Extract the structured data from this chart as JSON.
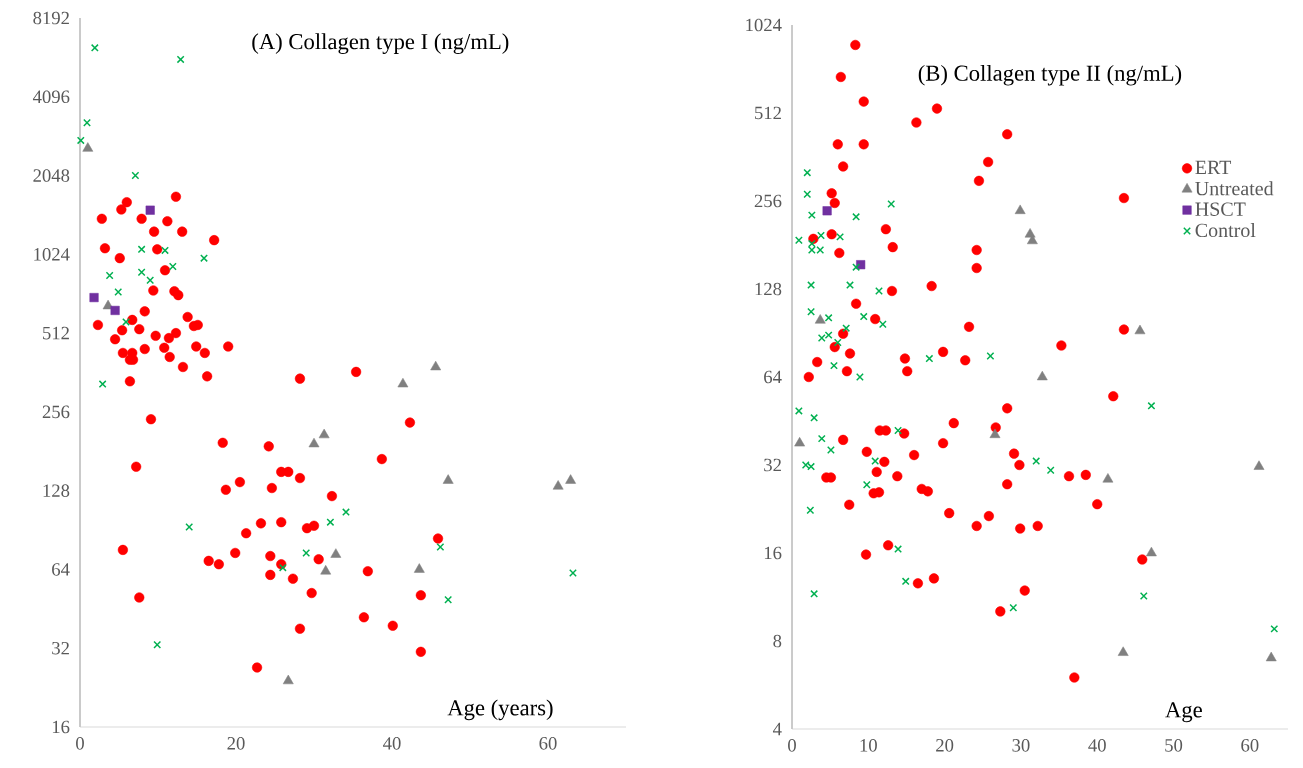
{
  "chart_data": [
    {
      "type": "scatter",
      "title": "(A) Collagen type I (ng/mL)",
      "xlabel": "Age (years)",
      "log": "y",
      "legend": false,
      "xlim": [
        0,
        70
      ],
      "ylim": [
        16,
        8192
      ],
      "xticks": [
        0,
        20,
        40,
        60
      ],
      "yticks": [
        16,
        32,
        64,
        128,
        256,
        512,
        1024,
        2048,
        4096,
        8192
      ],
      "series": [
        {
          "color": "#ff0000",
          "marker": "circle",
          "x": [
            12.3,
            6.0,
            5.3,
            2.8,
            7.9,
            11.2,
            9.5,
            13.1,
            17.2,
            3.2,
            9.9,
            5.1,
            10.9,
            9.4,
            12.1,
            12.6,
            8.3,
            13.8,
            2.3,
            6.7,
            5.4,
            7.6,
            15.1,
            14.6,
            4.5,
            9.7,
            11.4,
            12.3,
            5.5,
            6.7,
            8.3,
            10.8,
            14.9,
            16.0,
            19.0,
            6.4,
            6.8,
            11.5,
            13.2,
            16.3,
            6.4,
            9.1,
            18.3,
            24.2,
            25.8,
            26.7,
            7.2,
            28.2,
            20.5,
            18.7,
            24.6,
            23.2,
            25.8,
            29.1,
            30.0,
            21.3,
            5.5,
            16.5,
            17.8,
            19.9,
            24.4,
            25.8,
            24.4,
            27.3,
            29.7,
            7.6,
            28.2,
            22.7,
            35.4,
            28.2,
            42.3,
            38.7,
            32.3,
            45.9,
            30.6,
            36.9,
            43.7,
            36.4,
            40.1,
            43.7
          ],
          "values": [
            1700,
            1620,
            1520,
            1400,
            1400,
            1370,
            1250,
            1250,
            1160,
            1080,
            1070,
            990,
            890,
            745,
            740,
            715,
            620,
            590,
            550,
            575,
            525,
            530,
            550,
            545,
            485,
            500,
            490,
            512,
            430,
            430,
            445,
            450,
            455,
            430,
            455,
            405,
            405,
            415,
            380,
            350,
            335,
            240,
            195,
            189,
            151,
            151,
            158,
            143,
            138,
            129,
            131,
            96,
            97,
            92,
            94,
            88,
            76,
            69,
            67,
            74,
            72,
            67,
            61,
            59,
            52,
            50,
            38,
            27,
            364,
            343,
            233,
            169,
            122,
            84,
            70,
            63,
            51,
            42,
            39,
            31
          ]
        },
        {
          "color": "#808080",
          "marker": "triangle",
          "x": [
            1.0,
            3.6,
            30.0,
            31.3,
            45.6,
            41.4,
            47.2,
            61.3,
            62.9,
            32.8,
            31.5,
            43.5,
            26.7
          ],
          "values": [
            2600,
            650,
            193,
            209,
            380,
            327,
            140,
            133,
            140,
            73,
            63,
            64,
            24
          ]
        },
        {
          "color": "#7030a0",
          "marker": "square",
          "x": [
            9.0,
            1.8,
            4.5
          ],
          "values": [
            1510,
            700,
            625
          ]
        },
        {
          "color": "#00b050",
          "marker": "cross",
          "x": [
            1.9,
            12.9,
            0.9,
            0.1,
            7.1,
            7.9,
            10.9,
            11.9,
            15.9,
            3.8,
            7.9,
            9.0,
            4.9,
            5.9,
            2.9,
            14.0,
            29.0,
            26.0,
            34.1,
            32.1,
            46.2,
            63.2,
            47.2,
            9.9
          ],
          "values": [
            6300,
            5690,
            3260,
            2790,
            2048,
            1070,
            1060,
            920,
            990,
            850,
            875,
            815,
            735,
            565,
            327,
            93,
            74,
            65,
            106,
            97,
            78,
            62,
            49,
            33
          ]
        }
      ]
    },
    {
      "type": "scatter",
      "title": "(B) Collagen type II (ng/mL)",
      "xlabel": "Age",
      "log": "y",
      "legend": "top right",
      "xlim": [
        0,
        65
      ],
      "ylim": [
        4,
        1024
      ],
      "xticks": [
        0,
        10,
        20,
        30,
        40,
        50,
        60
      ],
      "yticks": [
        4,
        8,
        16,
        32,
        64,
        128,
        256,
        512,
        1024
      ],
      "series": [
        {
          "name": "ERT",
          "color": "#ff0000",
          "marker": "circle",
          "x": [
            8.3,
            6.4,
            9.4,
            19.0,
            16.3,
            6.0,
            9.4,
            6.7,
            5.2,
            5.6,
            12.3,
            5.2,
            2.8,
            13.2,
            6.2,
            13.1,
            18.3,
            8.4,
            10.9,
            6.7,
            5.6,
            7.6,
            3.3,
            2.2,
            14.8,
            19.8,
            23.2,
            22.7,
            15.1,
            7.2,
            11.5,
            12.3,
            14.7,
            21.2,
            19.8,
            6.7,
            9.8,
            16.0,
            12.1,
            11.1,
            13.8,
            4.5,
            5.1,
            10.7,
            11.4,
            17.0,
            17.8,
            7.5,
            20.6,
            24.2,
            12.6,
            9.7,
            16.5,
            18.6,
            28.2,
            25.7,
            24.5,
            43.5,
            24.2,
            24.2,
            43.5,
            35.3,
            42.1,
            28.2,
            26.7,
            29.1,
            29.8,
            36.3,
            38.5,
            28.2,
            40.0,
            25.8,
            29.9,
            32.2,
            45.9,
            30.5,
            27.3,
            37.0
          ],
          "values": [
            875,
            680,
            560,
            530,
            475,
            400,
            400,
            336,
            272,
            252,
            205,
            197,
            190,
            178,
            170,
            126,
            131,
            114,
            101,
            90,
            81,
            77,
            72,
            64,
            74,
            78,
            95,
            73,
            67,
            67,
            42,
            42,
            41,
            44.5,
            38,
            39,
            35.5,
            34.6,
            32.8,
            30.3,
            29.3,
            29,
            29,
            25.6,
            25.8,
            26.5,
            26,
            23.4,
            21.9,
            19.8,
            17,
            15.8,
            12.6,
            13.1,
            433,
            348,
            300,
            262,
            174,
            151,
            93,
            82,
            55,
            50,
            43,
            35,
            32,
            29.3,
            29.6,
            27.5,
            23.5,
            21.4,
            19.4,
            19.8,
            15.2,
            11.9,
            10.1,
            6.0
          ]
        },
        {
          "name": "Untreated",
          "color": "#808080",
          "marker": "triangle",
          "x": [
            3.7,
            1.0,
            29.9,
            31.2,
            31.5,
            45.6,
            32.8,
            26.6,
            41.4,
            61.2,
            47.1,
            43.4,
            62.8
          ],
          "values": [
            100,
            38,
            237,
            197,
            187,
            92,
            64,
            40.6,
            28.6,
            31.6,
            16,
            7.3,
            7.0
          ]
        },
        {
          "name": "HSCT",
          "color": "#7030a0",
          "marker": "square",
          "x": [
            4.6,
            9.0
          ],
          "values": [
            237,
            155
          ]
        },
        {
          "name": "Control",
          "color": "#00b050",
          "marker": "cross",
          "x": [
            2.0,
            2.0,
            2.6,
            8.4,
            13.0,
            0.9,
            3.8,
            6.3,
            2.6,
            2.6,
            3.7,
            8.4,
            2.5,
            7.6,
            11.4,
            2.5,
            4.8,
            9.4,
            11.9,
            7.1,
            3.9,
            4.8,
            6.0,
            18.0,
            5.5,
            8.9,
            0.9,
            2.9,
            13.9,
            3.9,
            5.1,
            10.9,
            1.8,
            2.5,
            9.8,
            2.4,
            13.9,
            14.9,
            2.9,
            26.0,
            47.1,
            32.0,
            33.9,
            46.1,
            29.0,
            63.2
          ],
          "values": [
            320,
            270,
            229,
            226,
            250,
            188,
            195,
            193,
            183,
            174,
            174,
            152,
            132,
            132,
            126,
            107,
            102,
            103,
            97,
            94,
            87,
            89,
            84,
            74,
            70,
            64,
            49,
            46.4,
            42,
            39.4,
            36,
            33,
            32,
            31.6,
            27.4,
            22.4,
            16.5,
            12.8,
            11.6,
            75.5,
            51,
            33,
            30.7,
            11.4,
            10.4,
            8.8
          ]
        }
      ]
    }
  ]
}
